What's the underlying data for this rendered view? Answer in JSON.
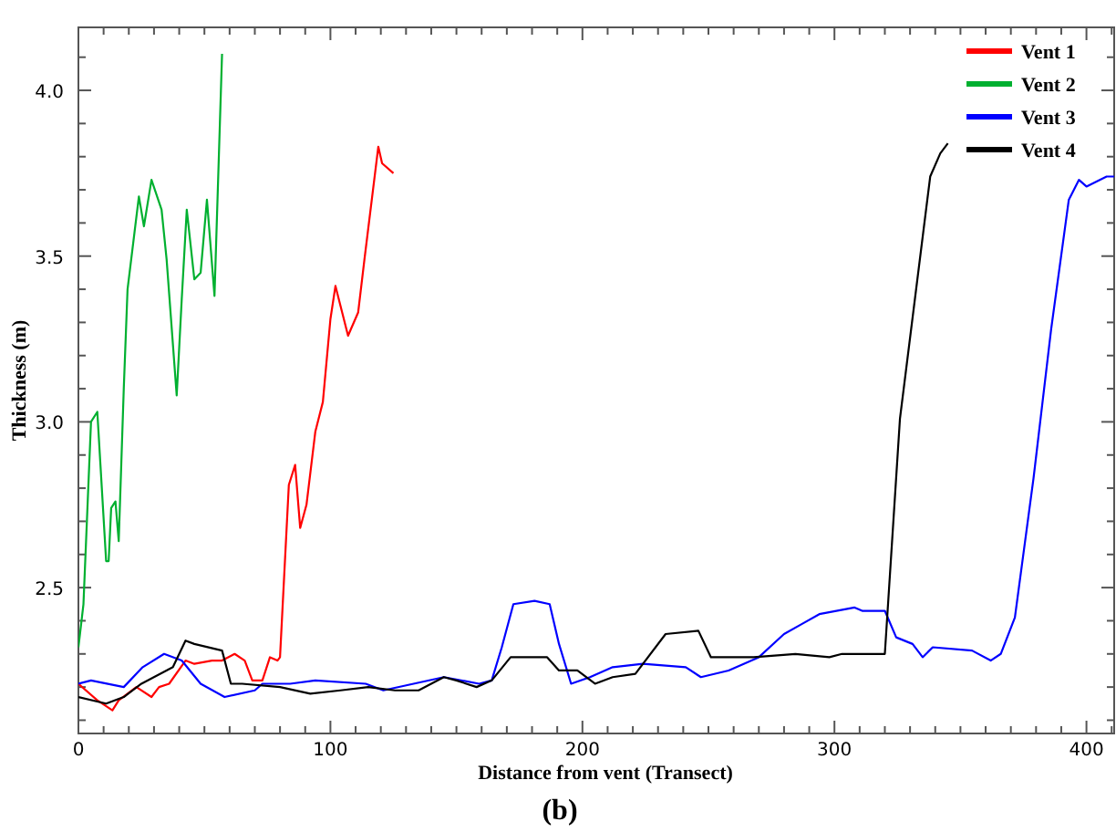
{
  "chart_data": {
    "type": "line",
    "xlabel": "Distance from vent (Transect)",
    "ylabel": "Thickness (m)",
    "annotations": [
      "(b)"
    ],
    "xlim": [
      0,
      411
    ],
    "ylim": [
      2.06,
      4.19
    ],
    "xticks": [
      0,
      {
        "value": 10,
        "label": null
      },
      {
        "value": 20,
        "label": null
      },
      {
        "value": 30,
        "label": null
      },
      {
        "value": 40,
        "label": null
      },
      {
        "value": 50,
        "label": null
      },
      {
        "value": 60,
        "label": null
      },
      {
        "value": 70,
        "label": null
      },
      {
        "value": 80,
        "label": null
      },
      {
        "value": 90,
        "label": null
      },
      100,
      {
        "value": 110,
        "label": null
      },
      {
        "value": 120,
        "label": null
      },
      {
        "value": 130,
        "label": null
      },
      {
        "value": 140,
        "label": null
      },
      {
        "value": 150,
        "label": null
      },
      {
        "value": 160,
        "label": null
      },
      {
        "value": 170,
        "label": null
      },
      {
        "value": 180,
        "label": null
      },
      {
        "value": 190,
        "label": null
      },
      200,
      {
        "value": 210,
        "label": null
      },
      {
        "value": 220,
        "label": null
      },
      {
        "value": 230,
        "label": null
      },
      {
        "value": 240,
        "label": null
      },
      {
        "value": 250,
        "label": null
      },
      {
        "value": 260,
        "label": null
      },
      {
        "value": 270,
        "label": null
      },
      {
        "value": 280,
        "label": null
      },
      {
        "value": 290,
        "label": null
      },
      300,
      {
        "value": 310,
        "label": null
      },
      {
        "value": 320,
        "label": null
      },
      {
        "value": 330,
        "label": null
      },
      {
        "value": 340,
        "label": null
      },
      {
        "value": 350,
        "label": null
      },
      {
        "value": 360,
        "label": null
      },
      {
        "value": 370,
        "label": null
      },
      {
        "value": 380,
        "label": null
      },
      {
        "value": 390,
        "label": null
      },
      400,
      {
        "value": 410,
        "label": null
      }
    ],
    "yticks": [
      {
        "value": 2.1,
        "label": null
      },
      {
        "value": 2.2,
        "label": null
      },
      {
        "value": 2.3,
        "label": null
      },
      {
        "value": 2.4,
        "label": null
      },
      2.5,
      {
        "value": 2.6,
        "label": null
      },
      {
        "value": 2.7,
        "label": null
      },
      {
        "value": 2.8,
        "label": null
      },
      {
        "value": 2.9,
        "label": null
      },
      {
        "value": 3,
        "label": "3.0"
      },
      {
        "value": 3.1,
        "label": null
      },
      {
        "value": 3.2,
        "label": null
      },
      {
        "value": 3.3,
        "label": null
      },
      {
        "value": 3.4,
        "label": null
      },
      3.5,
      {
        "value": 3.6,
        "label": null
      },
      {
        "value": 3.7,
        "label": null
      },
      {
        "value": 3.8,
        "label": null
      },
      {
        "value": 3.9,
        "label": null
      },
      {
        "value": 4,
        "label": "4.0"
      },
      {
        "value": 4.1,
        "label": null
      }
    ],
    "grid": false,
    "legend": "top right",
    "marker": "none",
    "line_style": "solid",
    "series": [
      {
        "name": "Vent 1",
        "color": "#ff0000",
        "x": [
          0,
          7.5,
          13.5,
          16,
          23,
          29,
          32,
          36,
          42.5,
          46,
          53,
          57,
          62,
          66,
          69,
          73,
          76,
          79,
          80,
          83.5,
          86,
          88,
          90.5,
          94,
          97,
          100,
          102,
          107,
          111,
          113.5,
          119,
          120.5,
          125
        ],
        "values": [
          2.21,
          2.16,
          2.13,
          2.16,
          2.2,
          2.17,
          2.2,
          2.21,
          2.28,
          2.27,
          2.28,
          2.28,
          2.3,
          2.28,
          2.22,
          2.22,
          2.29,
          2.28,
          2.29,
          2.81,
          2.87,
          2.68,
          2.75,
          2.97,
          3.06,
          3.31,
          3.41,
          3.26,
          3.33,
          3.49,
          3.83,
          3.78,
          3.75
        ]
      },
      {
        "name": "Vent 2",
        "color": "#00b030",
        "x": [
          0,
          2,
          5,
          7.5,
          11,
          12,
          13,
          14.7,
          16,
          18,
          19.5,
          24,
          26,
          29,
          33,
          35,
          39,
          41,
          43,
          46,
          48.5,
          51,
          54,
          57
        ],
        "values": [
          2.32,
          2.45,
          3.0,
          3.03,
          2.58,
          2.58,
          2.74,
          2.76,
          2.64,
          3.1,
          3.4,
          3.68,
          3.59,
          3.73,
          3.64,
          3.49,
          3.08,
          3.37,
          3.64,
          3.43,
          3.45,
          3.67,
          3.38,
          4.11
        ]
      },
      {
        "name": "Vent 3",
        "color": "#0000ff",
        "x": [
          0,
          5,
          18,
          25.5,
          34,
          41,
          48.5,
          58,
          70,
          73,
          84,
          94,
          114,
          121,
          133,
          145,
          159,
          164,
          168,
          172.6,
          181,
          187,
          190.7,
          195.5,
          203,
          212,
          224,
          241,
          247,
          258,
          270,
          280,
          287,
          294,
          308,
          311,
          320,
          324.5,
          331,
          335,
          339,
          354.6,
          362,
          366,
          371.6,
          379,
          386,
          393,
          397,
          400,
          408,
          411
        ],
        "values": [
          2.21,
          2.22,
          2.2,
          2.26,
          2.3,
          2.28,
          2.21,
          2.17,
          2.19,
          2.21,
          2.21,
          2.22,
          2.21,
          2.19,
          2.21,
          2.23,
          2.21,
          2.22,
          2.32,
          2.45,
          2.46,
          2.45,
          2.33,
          2.21,
          2.23,
          2.26,
          2.27,
          2.26,
          2.23,
          2.25,
          2.29,
          2.36,
          2.39,
          2.42,
          2.44,
          2.43,
          2.43,
          2.35,
          2.33,
          2.29,
          2.32,
          2.31,
          2.28,
          2.3,
          2.41,
          2.83,
          3.28,
          3.67,
          3.73,
          3.71,
          3.74,
          3.74
        ]
      },
      {
        "name": "Vent 4",
        "color": "#000000",
        "x": [
          0,
          11,
          18,
          25,
          37.5,
          42.5,
          46,
          57,
          60.5,
          65,
          80,
          92,
          104,
          115,
          125.6,
          135,
          145,
          150,
          158,
          164,
          171.5,
          176,
          186,
          190.7,
          198,
          205,
          212,
          221,
          233,
          246,
          251,
          261,
          268,
          284.5,
          298,
          303,
          316,
          320,
          326,
          338,
          342,
          345
        ],
        "values": [
          2.17,
          2.15,
          2.17,
          2.21,
          2.26,
          2.34,
          2.33,
          2.31,
          2.21,
          2.21,
          2.2,
          2.18,
          2.19,
          2.2,
          2.19,
          2.19,
          2.23,
          2.22,
          2.2,
          2.22,
          2.29,
          2.29,
          2.29,
          2.25,
          2.25,
          2.21,
          2.23,
          2.24,
          2.36,
          2.37,
          2.29,
          2.29,
          2.29,
          2.3,
          2.29,
          2.3,
          2.3,
          2.3,
          3.01,
          3.74,
          3.81,
          3.84
        ]
      }
    ]
  }
}
